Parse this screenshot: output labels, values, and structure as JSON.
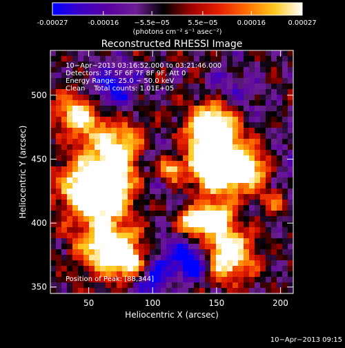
{
  "chart_data": {
    "type": "heatmap",
    "title": "Reconstructed RHESSI Image",
    "xlabel": "Heliocentric X (arcsec)",
    "ylabel": "Heliocentric Y (arcsec)",
    "xlim": [
      20,
      210
    ],
    "ylim": [
      345,
      535
    ],
    "x_ticks": [
      50,
      100,
      150,
      200
    ],
    "y_ticks": [
      350,
      400,
      450,
      500
    ],
    "colorbar": {
      "min": -0.00027,
      "max": 0.00027,
      "tick_values": [
        -0.00027,
        -0.00016,
        -5.5e-05,
        5.5e-05,
        0.00016,
        0.00027
      ],
      "tick_labels": [
        "-0.00027",
        "-0.00016",
        "−5.5e−05",
        "5.5e−05",
        "0.00016",
        "0.00027"
      ],
      "units_label": "(photons cm⁻² s⁻¹ asec⁻²)"
    },
    "annotations": [
      "10−Apr−2013 03:16:52.000 to 03:21:46.000",
      "Detectors: 3F 5F 6F 7F 8F 9F, Att 0",
      "Energy Range: 25.0 − 50.0 keV",
      "Clean    Total counts: 1.01E+05",
      "Position of Peak: [88,344]"
    ],
    "peak_position": [
      88,
      344
    ],
    "footer_timestamp": "10−Apr−2013 09:15",
    "grid": false,
    "legend": "colorbar-top",
    "colors": {
      "background": "#000000",
      "text": "#ffffff",
      "colormap": [
        "#0000ff",
        "#3c00c8",
        "#5a00a0",
        "#6e1e96",
        "#000000",
        "#a00000",
        "#e61e00",
        "#ff6e00",
        "#ffc81e",
        "#ffffff"
      ]
    }
  }
}
